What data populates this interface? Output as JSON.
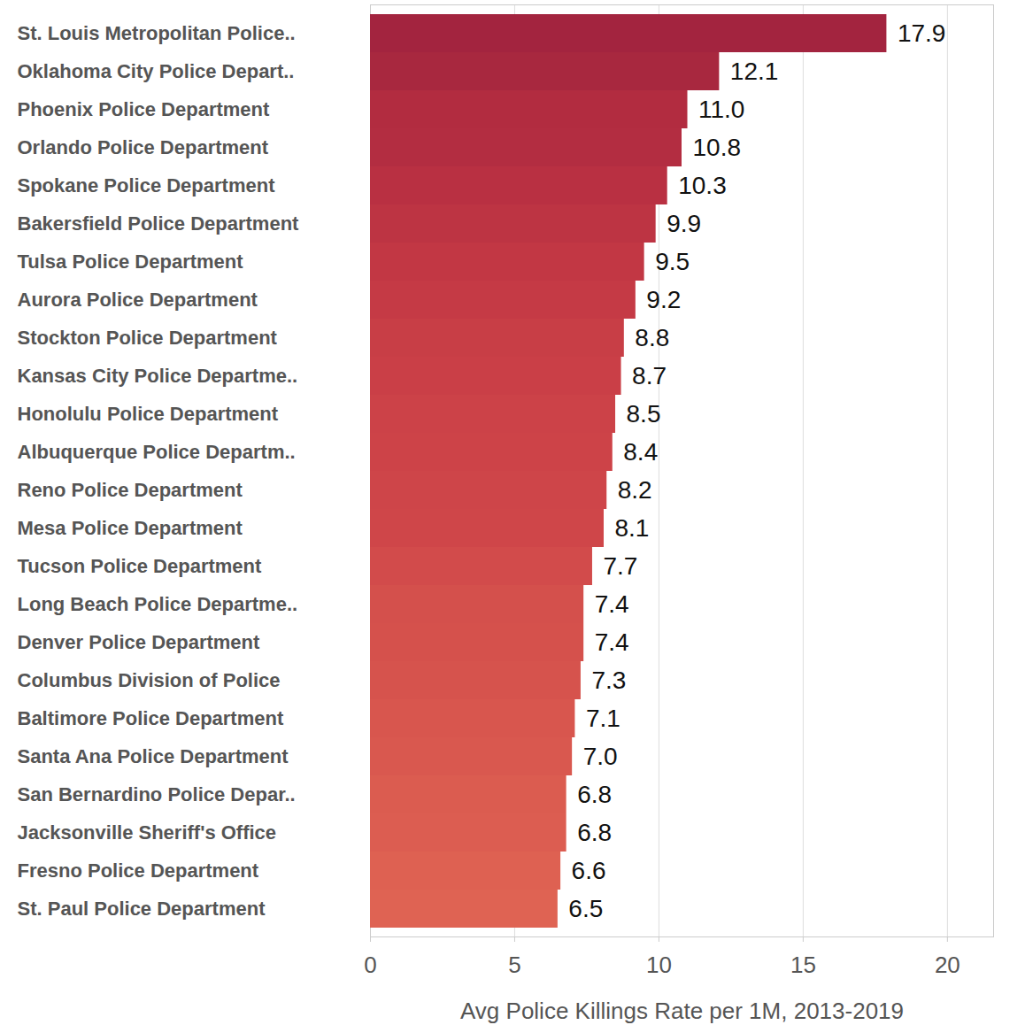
{
  "chart_data": {
    "type": "bar",
    "orientation": "horizontal",
    "x_label": "Avg Police Killings Rate per 1M, 2013-2019",
    "categories": [
      "St. Louis Metropolitan Police..",
      "Oklahoma City Police Depart..",
      "Phoenix Police Department",
      "Orlando Police Department",
      "Spokane Police Department",
      "Bakersfield Police Department",
      "Tulsa Police Department",
      "Aurora Police Department",
      "Stockton Police Department",
      "Kansas City Police Departme..",
      "Honolulu Police Department",
      "Albuquerque Police Departm..",
      "Reno Police Department",
      "Mesa Police Department",
      "Tucson Police Department",
      "Long Beach Police Departme..",
      "Denver Police Department",
      "Columbus Division of Police",
      "Baltimore Police Department",
      "Santa Ana Police Department",
      "San Bernardino Police Depar..",
      "Jacksonville Sheriff's Office",
      "Fresno Police Department",
      "St. Paul Police Department"
    ],
    "values": [
      17.9,
      12.1,
      11.0,
      10.8,
      10.3,
      9.9,
      9.5,
      9.2,
      8.8,
      8.7,
      8.5,
      8.4,
      8.2,
      8.1,
      7.7,
      7.4,
      7.4,
      7.3,
      7.1,
      7.0,
      6.8,
      6.8,
      6.6,
      6.5
    ],
    "value_labels": [
      "17.9",
      "12.1",
      "11.0",
      "10.8",
      "10.3",
      "9.9",
      "9.5",
      "9.2",
      "8.8",
      "8.7",
      "8.5",
      "8.4",
      "8.2",
      "8.1",
      "7.7",
      "7.4",
      "7.4",
      "7.3",
      "7.1",
      "7.0",
      "6.8",
      "6.8",
      "6.6",
      "6.5"
    ],
    "colors": [
      "#a3243f",
      "#a8283f",
      "#b22c40",
      "#b32d41",
      "#b93042",
      "#bd3443",
      "#c23744",
      "#c53a45",
      "#c83e46",
      "#ca3f47",
      "#cc4248",
      "#cd4348",
      "#ce4549",
      "#cf4649",
      "#d24b4b",
      "#d4504c",
      "#d5514c",
      "#d6534d",
      "#d8564e",
      "#d9584f",
      "#db5c50",
      "#dc5d51",
      "#de6152",
      "#df6353"
    ],
    "xlim": [
      0,
      21.6
    ],
    "xticks": [
      0,
      5,
      10,
      15,
      20
    ],
    "grid": true,
    "data_labels": true
  }
}
